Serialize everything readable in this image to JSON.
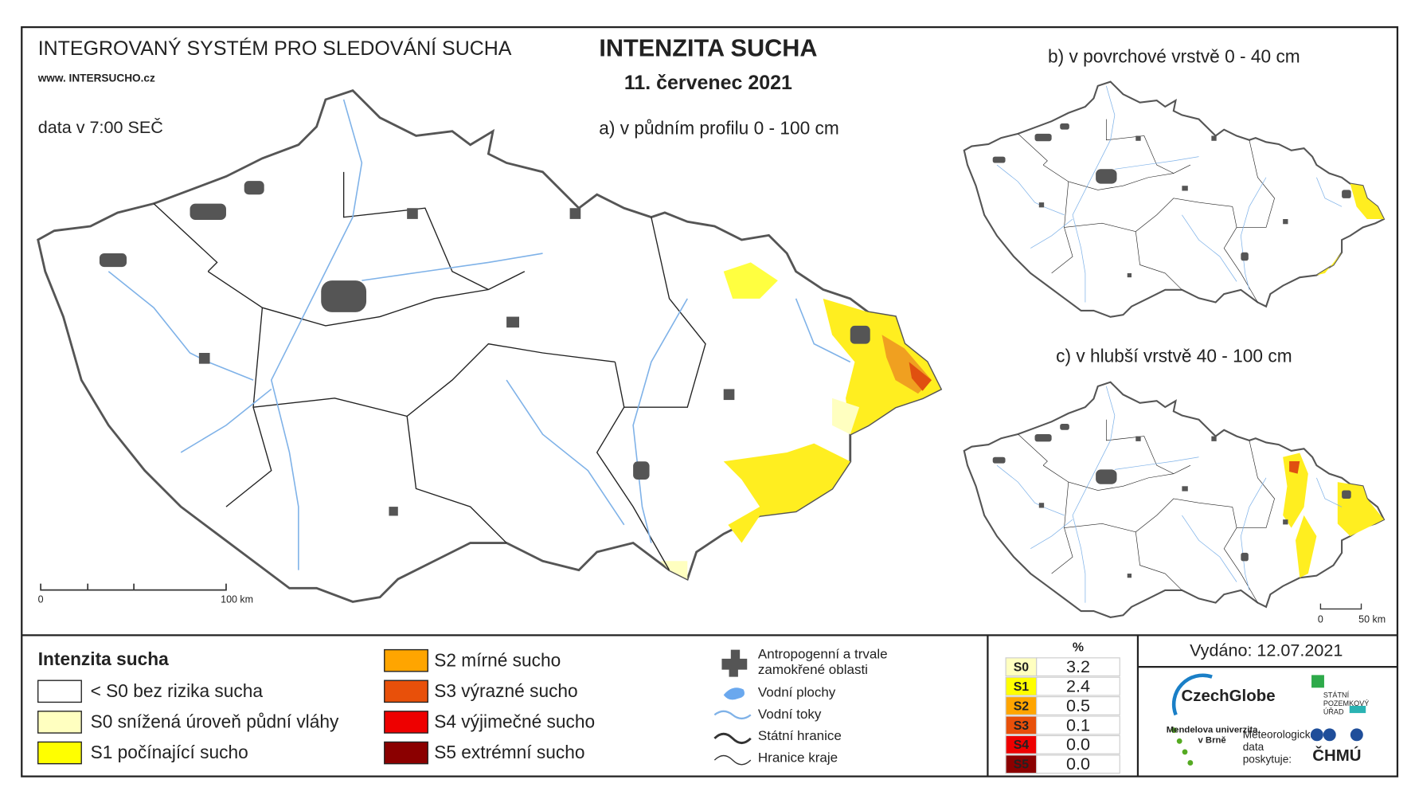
{
  "header": {
    "system": "INTEGROVANÝ SYSTÉM PRO SLEDOVÁNÍ SUCHA",
    "web": "www. INTERSUCHO.cz",
    "data_time": "data v 7:00 SEČ",
    "title": "INTENZITA SUCHA",
    "date": "11. červenec 2021"
  },
  "maps": [
    {
      "label": "a) v půdním profilu 0 - 100 cm",
      "scale_start": "0",
      "scale_end": "100 km"
    },
    {
      "label": "b) v povrchové vrstvě 0 - 40 cm"
    },
    {
      "label": "c) v hlubší vrstvě 40 - 100 cm",
      "scale_start": "0",
      "scale_end": "50 km"
    }
  ],
  "legend": {
    "title": "Intenzita sucha",
    "items": [
      {
        "label": "< S0 bez rizika sucha",
        "color": "#ffffff"
      },
      {
        "label": "S0 snížená úroveň půdní vláhy",
        "color": "#ffffc0"
      },
      {
        "label": "S1 počínající sucho",
        "color": "#ffff00"
      },
      {
        "label": "S2 mírné sucho",
        "color": "#ffa500"
      },
      {
        "label": "S3 výrazné sucho",
        "color": "#e8500a"
      },
      {
        "label": "S4 výjimečné sucho",
        "color": "#ee0000"
      },
      {
        "label": "S5 extrémní sucho",
        "color": "#8b0000"
      }
    ],
    "symbols": [
      {
        "label": "Antropogenní a trvale zamokřené oblasti"
      },
      {
        "label": "Vodní plochy"
      },
      {
        "label": "Vodní toky"
      },
      {
        "label": "Státní hranice"
      },
      {
        "label": "Hranice kraje"
      }
    ]
  },
  "table": {
    "header": "%",
    "rows": [
      [
        "S0",
        "3.2"
      ],
      [
        "S1",
        "2.4"
      ],
      [
        "S2",
        "0.5"
      ],
      [
        "S3",
        "0.1"
      ],
      [
        "S4",
        "0.0"
      ],
      [
        "S5",
        "0.0"
      ]
    ]
  },
  "issued": "Vydáno: 12.07.2021",
  "logos": {
    "czechglobe": "CzechGlobe",
    "spu": "STÁTNÍ POZEMKOVÝ ÚŘAD",
    "mendel": "Mendelova univerzita v Brně",
    "provider": "Meteorologická data poskytuje:",
    "chmu": "ČHMÚ"
  }
}
